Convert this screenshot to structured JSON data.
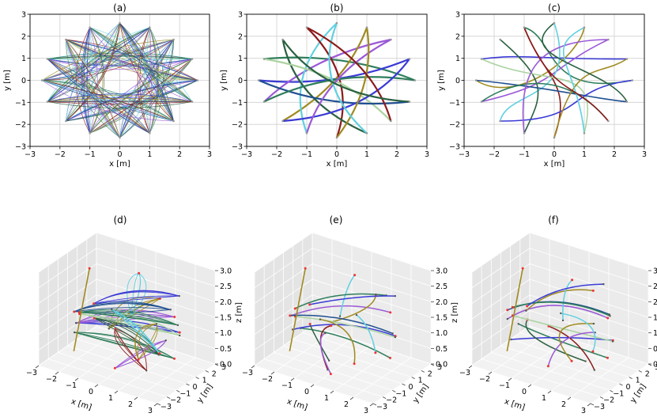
{
  "chart_data": [
    {
      "type": "line",
      "panel": "2d",
      "title": "(a)",
      "xlabel": "x [m]",
      "ylabel": "y [m]",
      "xlim": [
        -3,
        3
      ],
      "ylim": [
        -3,
        3
      ],
      "xticks": [
        "−3",
        "−2",
        "−1",
        "0",
        "1",
        "2",
        "3"
      ],
      "yticks": [
        "−3",
        "−2",
        "−1",
        "0",
        "1",
        "2",
        "3"
      ],
      "grid": true,
      "trajectory_style": "many overlapping thin trajectories between radial end points (star pattern)",
      "endpoints": [
        [
          2.6,
          0
        ],
        [
          2.42,
          0.97
        ],
        [
          1.8,
          1.85
        ],
        [
          1.0,
          2.4
        ],
        [
          0,
          2.6
        ],
        [
          -1.0,
          2.4
        ],
        [
          -1.8,
          1.85
        ],
        [
          -2.42,
          0.97
        ],
        [
          -2.6,
          0
        ],
        [
          -2.42,
          -0.97
        ],
        [
          -1.8,
          -1.85
        ],
        [
          -1.0,
          -2.4
        ],
        [
          0,
          -2.6
        ],
        [
          1.0,
          -2.4
        ],
        [
          1.8,
          -1.85
        ],
        [
          2.42,
          -0.97
        ]
      ],
      "colors": [
        "#2e7d5b",
        "#3a3ad6",
        "#9b59d6",
        "#a08a20",
        "#5fd0e0",
        "#8b1a1a",
        "#2a6040",
        "#aad3a0",
        "#1f4f8f"
      ]
    },
    {
      "type": "line",
      "panel": "2d",
      "title": "(b)",
      "xlabel": "x [m]",
      "ylabel": "y [m]",
      "xlim": [
        -3,
        3
      ],
      "ylim": [
        -3,
        3
      ],
      "xticks": [
        "−3",
        "−2",
        "−1",
        "0",
        "1",
        "2",
        "3"
      ],
      "yticks": [
        "−3",
        "−2",
        "−1",
        "0",
        "1",
        "2",
        "3"
      ],
      "grid": true,
      "trajectory_style": "one thick curved trajectory per end point pair",
      "endpoints": [
        [
          2.6,
          0
        ],
        [
          2.42,
          0.97
        ],
        [
          1.8,
          1.85
        ],
        [
          1.0,
          2.4
        ],
        [
          0,
          2.6
        ],
        [
          -1.0,
          2.4
        ],
        [
          -1.8,
          1.85
        ],
        [
          -2.42,
          0.97
        ],
        [
          -2.6,
          0
        ],
        [
          -2.42,
          -0.97
        ],
        [
          -1.8,
          -1.85
        ],
        [
          -1.0,
          -2.4
        ],
        [
          0,
          -2.6
        ],
        [
          1.0,
          -2.4
        ],
        [
          1.8,
          -1.85
        ],
        [
          2.42,
          -0.97
        ]
      ],
      "colors": [
        "#2e7d5b",
        "#3a3ad6",
        "#9b59d6",
        "#a08a20",
        "#5fd0e0",
        "#8b1a1a",
        "#2a6040",
        "#aad3a0",
        "#1f4f8f"
      ]
    },
    {
      "type": "line",
      "panel": "2d",
      "title": "(c)",
      "xlabel": "x [m]",
      "ylabel": "y [m]",
      "xlim": [
        -3,
        3
      ],
      "ylim": [
        -3,
        3
      ],
      "xticks": [
        "−3",
        "−2",
        "−1",
        "0",
        "1",
        "2",
        "3"
      ],
      "yticks": [
        "−3",
        "−2",
        "−1",
        "0",
        "1",
        "2",
        "3"
      ],
      "grid": true,
      "trajectory_style": "one looping trajectory per end point",
      "endpoints": [
        [
          2.6,
          0
        ],
        [
          2.42,
          0.97
        ],
        [
          1.8,
          1.85
        ],
        [
          1.0,
          2.4
        ],
        [
          0,
          2.6
        ],
        [
          -1.0,
          2.4
        ],
        [
          -1.8,
          1.85
        ],
        [
          -2.42,
          0.97
        ],
        [
          -2.6,
          0
        ],
        [
          -2.42,
          -0.97
        ],
        [
          -1.8,
          -1.85
        ],
        [
          -1.0,
          -2.4
        ],
        [
          0,
          -2.6
        ],
        [
          1.0,
          -2.4
        ],
        [
          1.8,
          -1.85
        ],
        [
          2.42,
          -0.97
        ]
      ],
      "colors": [
        "#2e7d5b",
        "#3a3ad6",
        "#9b59d6",
        "#a08a20",
        "#5fd0e0",
        "#8b1a1a",
        "#2a6040",
        "#aad3a0",
        "#1f4f8f"
      ]
    },
    {
      "type": "line",
      "panel": "3d",
      "title": "(d)",
      "xlabel": "x [m]",
      "ylabel": "y [m]",
      "zlabel": "z [m]",
      "xlim": [
        -3,
        3
      ],
      "ylim": [
        -3,
        3
      ],
      "zlim": [
        0,
        3
      ],
      "xticks": [
        "−3",
        "−2",
        "−1",
        "0",
        "1",
        "2",
        "3"
      ],
      "yticks": [
        "−3",
        "−2",
        "−1",
        "0",
        "1",
        "2",
        "3"
      ],
      "zticks": [
        "0.0",
        "0.5",
        "1.0",
        "1.5",
        "2.0",
        "2.5",
        "3.0"
      ],
      "grid": true,
      "trajectory_style": "bundles of trajectories at several heights",
      "colors": [
        "#2e7d5b",
        "#3a3ad6",
        "#9b59d6",
        "#a08a20",
        "#5fd0e0",
        "#8b1a1a",
        "#2a6040",
        "#aad3a0",
        "#1f4f8f"
      ]
    },
    {
      "type": "line",
      "panel": "3d",
      "title": "(e)",
      "xlabel": "x [m]",
      "ylabel": "y [m]",
      "zlabel": "z [m]",
      "xlim": [
        -3,
        3
      ],
      "ylim": [
        -3,
        3
      ],
      "zlim": [
        0,
        3
      ],
      "xticks": [
        "−3",
        "−2",
        "−1",
        "0",
        "1",
        "2",
        "3"
      ],
      "yticks": [
        "−3",
        "−2",
        "−1",
        "0",
        "1",
        "2",
        "3"
      ],
      "zticks": [
        "0.0",
        "0.5",
        "1.0",
        "1.5",
        "2.0",
        "2.5",
        "3.0"
      ],
      "grid": true,
      "trajectory_style": "single curved trajectories at several heights",
      "colors": [
        "#2e7d5b",
        "#3a3ad6",
        "#9b59d6",
        "#a08a20",
        "#5fd0e0",
        "#8b1a1a",
        "#2a6040",
        "#aad3a0",
        "#1f4f8f"
      ]
    },
    {
      "type": "line",
      "panel": "3d",
      "title": "(f)",
      "xlabel": "x [m]",
      "ylabel": "y [m]",
      "zlabel": "z [m]",
      "xlim": [
        -3,
        3
      ],
      "ylim": [
        -3,
        3
      ],
      "zlim": [
        0,
        3
      ],
      "xticks": [
        "−3",
        "−2",
        "−1",
        "0",
        "1",
        "2",
        "3"
      ],
      "yticks": [
        "−3",
        "−2",
        "−1",
        "0",
        "1",
        "2",
        "3"
      ],
      "zticks": [
        "0.0",
        "0.5",
        "1.0",
        "1.5",
        "2.0",
        "2.5",
        "3.0"
      ],
      "grid": true,
      "trajectory_style": "looping trajectories at several heights",
      "colors": [
        "#2e7d5b",
        "#3a3ad6",
        "#9b59d6",
        "#a08a20",
        "#5fd0e0",
        "#8b1a1a",
        "#2a6040",
        "#aad3a0",
        "#1f4f8f"
      ]
    }
  ]
}
